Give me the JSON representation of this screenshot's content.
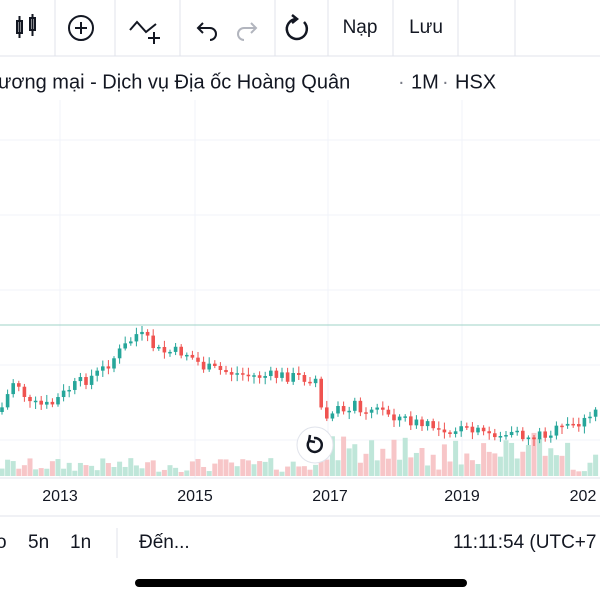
{
  "toolbar": {
    "buttons": [
      "Nạp",
      "Lưu"
    ]
  },
  "chart": {
    "title": "ương mại - Dịch vụ Địa ốc Hoàng Quân",
    "interval": "1M",
    "exchange": "HSX",
    "x_axis_labels": [
      "2013",
      "2015",
      "2017",
      "2019",
      "202"
    ]
  },
  "bottom_bar": {
    "ranges": [
      "o",
      "5n",
      "1n"
    ],
    "goto": "Đến...",
    "clock": "11:11:54 (UTC+7"
  }
}
